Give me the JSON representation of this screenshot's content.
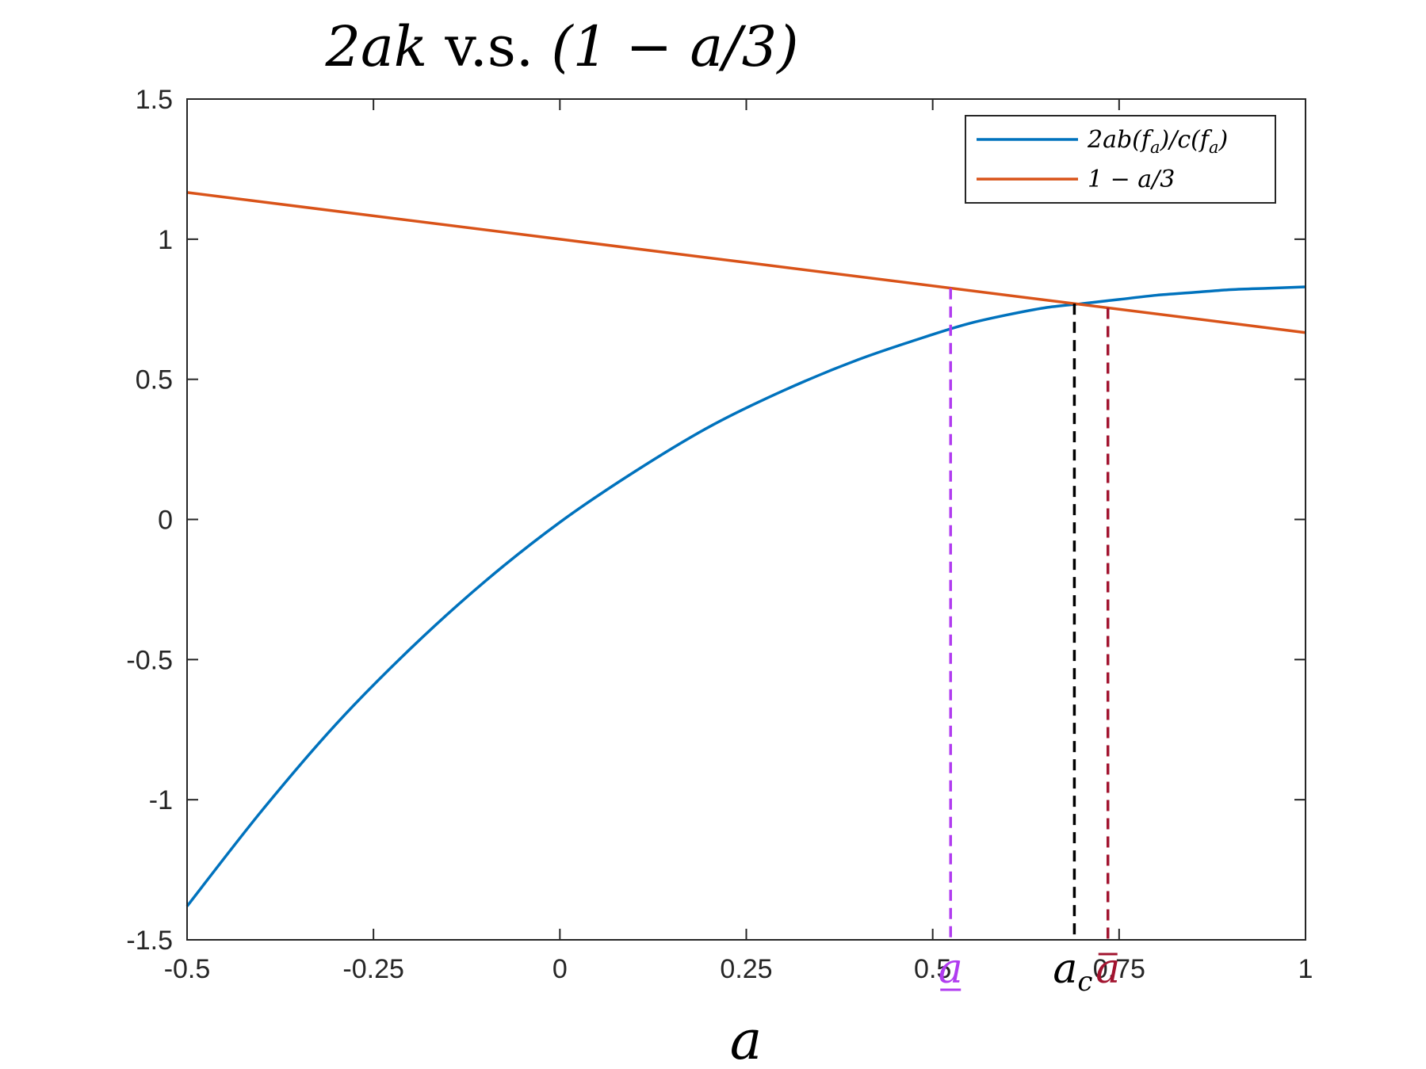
{
  "chart_data": {
    "type": "line",
    "title_parts": {
      "expr_left": "2ak",
      "connector": " v.s. ",
      "expr_right": "(1 − a/3)"
    },
    "xlabel": "a",
    "ylabel": "",
    "xlim": [
      -0.5,
      1.0
    ],
    "ylim": [
      -1.5,
      1.5
    ],
    "grid": false,
    "legend_position": "top-right",
    "x_ticks": [
      {
        "value": -0.5,
        "label": "-0.5"
      },
      {
        "value": -0.25,
        "label": "-0.25"
      },
      {
        "value": 0,
        "label": "0"
      },
      {
        "value": 0.25,
        "label": "0.25"
      },
      {
        "value": 0.5,
        "label": "0.5"
      },
      {
        "value": 0.75,
        "label": "0.75"
      },
      {
        "value": 1,
        "label": "1"
      }
    ],
    "y_ticks": [
      {
        "value": -1.5,
        "label": "-1.5"
      },
      {
        "value": -1,
        "label": "-1"
      },
      {
        "value": -0.5,
        "label": "-0.5"
      },
      {
        "value": 0,
        "label": "0"
      },
      {
        "value": 0.5,
        "label": "0.5"
      },
      {
        "value": 1,
        "label": "1"
      },
      {
        "value": 1.5,
        "label": "1.5"
      }
    ],
    "series": [
      {
        "name": "2ab(f_a)/c(f_a)",
        "legend_main": "2ab(f",
        "legend_sub": "a",
        "legend_mid": ")/c(f",
        "legend_sub2": "a",
        "legend_end": ")",
        "color": "#0072BD",
        "x": [
          -0.5,
          -0.4,
          -0.3,
          -0.2,
          -0.1,
          0.0,
          0.1,
          0.2,
          0.3,
          0.4,
          0.5,
          0.55,
          0.6,
          0.65,
          0.7,
          0.75,
          0.8,
          0.85,
          0.9,
          0.95,
          1.0
        ],
        "y": [
          -1.38,
          -1.04,
          -0.73,
          -0.46,
          -0.22,
          -0.01,
          0.17,
          0.33,
          0.46,
          0.57,
          0.66,
          0.7,
          0.73,
          0.755,
          0.77,
          0.785,
          0.8,
          0.81,
          0.82,
          0.825,
          0.83
        ]
      },
      {
        "name": "1 − a/3",
        "legend_main": "1 − a/3",
        "color": "#D95319",
        "x": [
          -0.5,
          1.0
        ],
        "y": [
          1.1667,
          0.6667
        ]
      }
    ],
    "vlines": [
      {
        "name": "a-underline",
        "x": 0.524,
        "y_top": 0.825,
        "color": "#B13CF0",
        "label_main": "a",
        "label_decor": "underline"
      },
      {
        "name": "a-c",
        "x": 0.69,
        "y_top": 0.77,
        "color": "#000000",
        "label_main": "a",
        "label_sub": "c"
      },
      {
        "name": "a-bar",
        "x": 0.735,
        "y_top": 0.755,
        "color": "#A2142F",
        "label_main": "a",
        "label_decor": "overline"
      }
    ]
  },
  "colors": {
    "axis": "#262626",
    "background": "#ffffff"
  }
}
